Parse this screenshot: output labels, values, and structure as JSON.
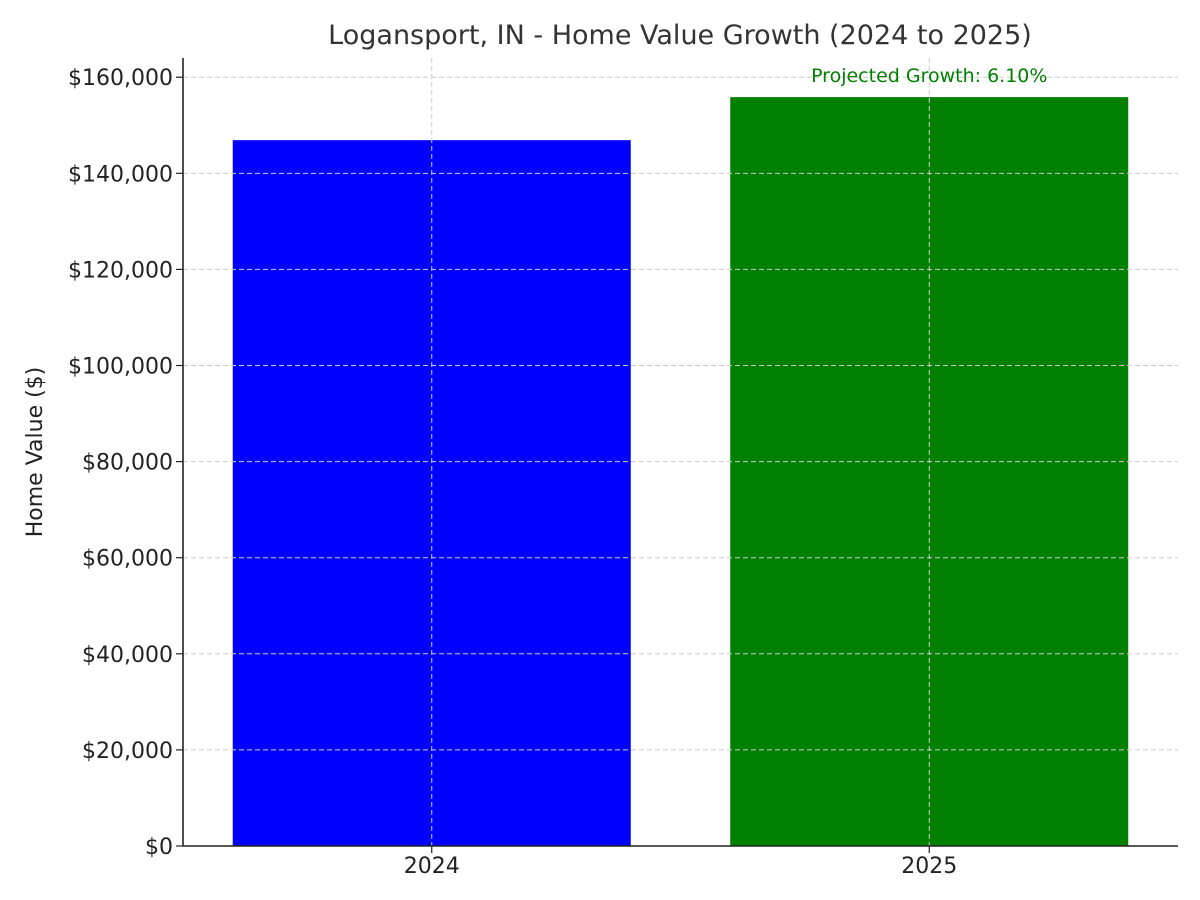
{
  "chart_data": {
    "type": "bar",
    "title": "Logansport, IN - Home Value Growth (2024 to 2025)",
    "xlabel": "",
    "ylabel": "Home Value ($)",
    "categories": [
      "2024",
      "2025"
    ],
    "values": [
      146900,
      155860
    ],
    "bar_colors": [
      "#0000ff",
      "#008000"
    ],
    "ylim": [
      0,
      164000
    ],
    "yticks": [
      0,
      20000,
      40000,
      60000,
      80000,
      100000,
      120000,
      140000,
      160000
    ],
    "ytick_labels": [
      "$0",
      "$20,000",
      "$40,000",
      "$60,000",
      "$80,000",
      "$100,000",
      "$120,000",
      "$140,000",
      "$160,000"
    ],
    "grid": true,
    "annotation": {
      "text": "Projected Growth: 6.10%",
      "color": "#008000",
      "anchor_category": "2025"
    }
  }
}
